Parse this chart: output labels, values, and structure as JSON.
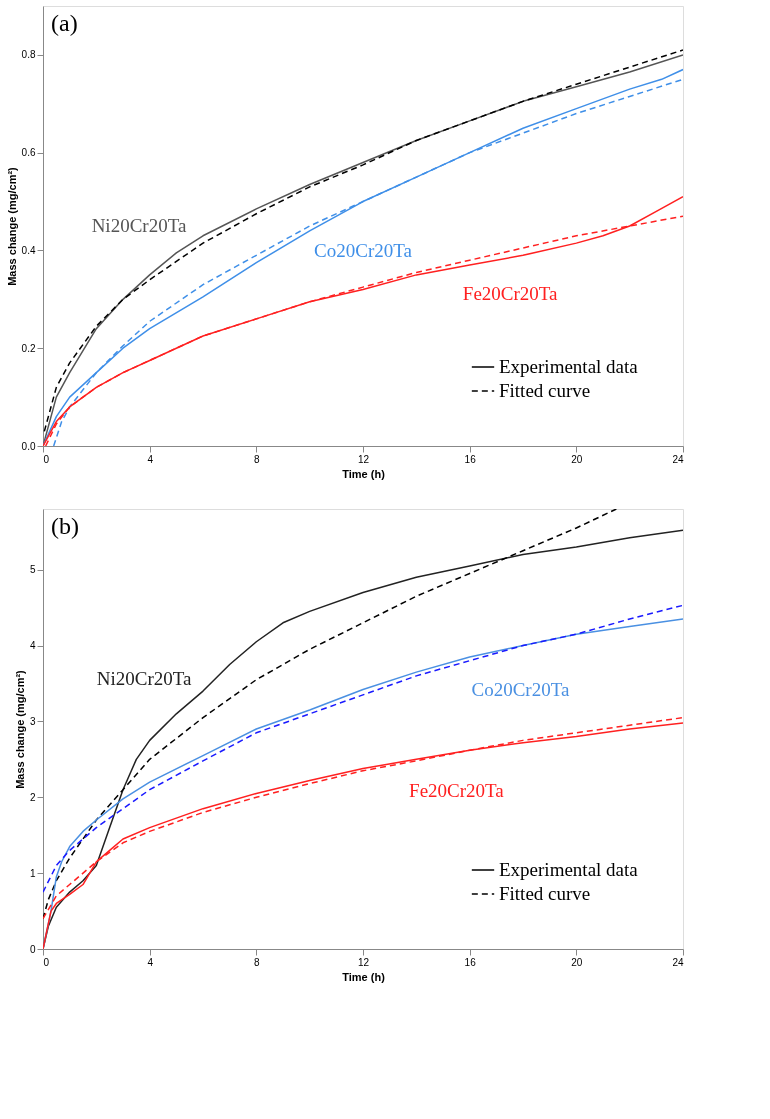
{
  "chart_data": [
    {
      "type": "line",
      "title": "(a)",
      "xlabel": "Time (h)",
      "ylabel": "Mass change (mg/cm²)",
      "xlim": [
        0,
        24
      ],
      "ylim": [
        0,
        0.9
      ],
      "xticks": [
        0,
        4,
        8,
        12,
        16,
        20,
        24
      ],
      "yticks": [
        {
          "value": 0,
          "label": "0.0"
        },
        {
          "value": 0.2,
          "label": "0.2"
        },
        {
          "value": 0.4,
          "label": "0.4"
        },
        {
          "value": 0.6,
          "label": "0.6"
        },
        {
          "value": 0.8,
          "label": "0.8"
        }
      ],
      "grid": false,
      "annotations": [
        "Ni20Cr20Ta",
        "Co20Cr20Ta",
        "Fe20Cr20Ta",
        "Experimental data",
        "Fitted curve"
      ],
      "series": [
        {
          "color": "#555555",
          "line_style": "solid",
          "x": [
            0,
            0.5,
            1,
            2,
            3,
            4,
            5,
            6,
            8,
            10,
            12,
            14,
            16,
            18,
            20,
            22,
            24
          ],
          "values": [
            0,
            0.1,
            0.15,
            0.24,
            0.3,
            0.35,
            0.395,
            0.43,
            0.485,
            0.535,
            0.58,
            0.625,
            0.665,
            0.705,
            0.735,
            0.765,
            0.8
          ]
        },
        {
          "color": "#000000",
          "line_style": "dashed",
          "x": [
            0.05,
            0.5,
            1,
            2,
            3,
            4,
            6,
            8,
            10,
            12,
            14,
            16,
            18,
            20,
            22,
            24
          ],
          "values": [
            0.03,
            0.12,
            0.17,
            0.245,
            0.3,
            0.34,
            0.415,
            0.475,
            0.53,
            0.575,
            0.625,
            0.665,
            0.705,
            0.74,
            0.775,
            0.81
          ]
        },
        {
          "color": "#3f8fe8",
          "line_style": "solid",
          "x": [
            0,
            0.5,
            1,
            2,
            3,
            4,
            6,
            8,
            10,
            12,
            14,
            16,
            18,
            20,
            22,
            23.2,
            24
          ],
          "values": [
            0,
            0.06,
            0.1,
            0.15,
            0.2,
            0.24,
            0.305,
            0.375,
            0.44,
            0.5,
            0.55,
            0.6,
            0.65,
            0.69,
            0.73,
            0.75,
            0.77
          ]
        },
        {
          "color": "#3f8fe8",
          "line_style": "dashed",
          "x": [
            0.4,
            0.7,
            1,
            2,
            3,
            4,
            6,
            8,
            10,
            12,
            14,
            16,
            18,
            20,
            22,
            24
          ],
          "values": [
            0,
            0.05,
            0.08,
            0.15,
            0.205,
            0.255,
            0.33,
            0.39,
            0.45,
            0.5,
            0.55,
            0.6,
            0.64,
            0.68,
            0.715,
            0.75
          ]
        },
        {
          "color": "#ff2020",
          "line_style": "solid",
          "x": [
            0,
            0.5,
            1,
            2,
            3,
            4,
            6,
            8,
            10,
            12,
            14,
            16,
            18,
            20,
            21,
            22,
            23,
            24
          ],
          "values": [
            0,
            0.05,
            0.08,
            0.12,
            0.15,
            0.175,
            0.225,
            0.26,
            0.295,
            0.32,
            0.35,
            0.37,
            0.39,
            0.415,
            0.43,
            0.45,
            0.48,
            0.51
          ]
        },
        {
          "color": "#ff2020",
          "line_style": "dashed",
          "x": [
            0.1,
            0.5,
            1,
            2,
            3,
            4,
            6,
            8,
            10,
            12,
            14,
            16,
            18,
            20,
            22,
            24
          ],
          "values": [
            0,
            0.045,
            0.08,
            0.12,
            0.15,
            0.175,
            0.225,
            0.26,
            0.295,
            0.325,
            0.355,
            0.38,
            0.405,
            0.43,
            0.45,
            0.47
          ]
        }
      ]
    },
    {
      "type": "line",
      "title": "(b)",
      "xlabel": "Time (h)",
      "ylabel": "Mass change (mg/cm²)",
      "xlim": [
        0,
        24
      ],
      "ylim": [
        0,
        5.8
      ],
      "xticks": [
        0,
        4,
        8,
        12,
        16,
        20,
        24
      ],
      "yticks": [
        0,
        1,
        2,
        3,
        4,
        5
      ],
      "grid": false,
      "annotations": [
        "Ni20Cr20Ta",
        "Co20Cr20Ta",
        "Fe20Cr20Ta",
        "Experimental data",
        "Fitted curve"
      ],
      "series": [
        {
          "color": "#222222",
          "line_style": "solid",
          "x": [
            0,
            0.2,
            0.5,
            1,
            1.5,
            2,
            2.5,
            3,
            3.5,
            4,
            5,
            6,
            7,
            8,
            9,
            10,
            12,
            14,
            16,
            18,
            20,
            22,
            24
          ],
          "values": [
            0,
            0.3,
            0.55,
            0.75,
            0.9,
            1.1,
            1.6,
            2.1,
            2.5,
            2.75,
            3.1,
            3.4,
            3.75,
            4.05,
            4.3,
            4.45,
            4.7,
            4.9,
            5.05,
            5.2,
            5.3,
            5.42,
            5.52
          ]
        },
        {
          "color": "#000000",
          "line_style": "dashed",
          "x": [
            0,
            0.2,
            0.5,
            1,
            2,
            3,
            4,
            6,
            8,
            10,
            12,
            14,
            16,
            18,
            20,
            21.5
          ],
          "values": [
            0.4,
            0.65,
            0.9,
            1.2,
            1.7,
            2.1,
            2.5,
            3.05,
            3.55,
            3.95,
            4.3,
            4.65,
            4.95,
            5.25,
            5.55,
            5.8
          ]
        },
        {
          "color": "#4a90e2",
          "line_style": "solid",
          "x": [
            0,
            0.3,
            0.5,
            0.7,
            1,
            1.5,
            2,
            3,
            4,
            6,
            8,
            10,
            12,
            14,
            16,
            18,
            20,
            22,
            24
          ],
          "values": [
            0,
            0.5,
            0.95,
            1.15,
            1.35,
            1.55,
            1.7,
            1.98,
            2.2,
            2.55,
            2.9,
            3.15,
            3.42,
            3.65,
            3.85,
            4.0,
            4.15,
            4.25,
            4.35
          ]
        },
        {
          "color": "#1a1aff",
          "line_style": "dashed",
          "x": [
            0,
            0.5,
            1,
            2,
            3,
            4,
            6,
            8,
            10,
            12,
            14,
            16,
            18,
            20,
            22,
            24
          ],
          "values": [
            0.75,
            1.1,
            1.3,
            1.6,
            1.85,
            2.1,
            2.48,
            2.85,
            3.1,
            3.35,
            3.6,
            3.8,
            4.0,
            4.15,
            4.35,
            4.53
          ]
        },
        {
          "color": "#ff2020",
          "line_style": "solid",
          "x": [
            0,
            0.3,
            0.5,
            1,
            1.5,
            2,
            2.5,
            3,
            4,
            6,
            8,
            10,
            12,
            14,
            16,
            18,
            20,
            22,
            24
          ],
          "values": [
            0,
            0.5,
            0.6,
            0.72,
            0.85,
            1.15,
            1.3,
            1.45,
            1.6,
            1.85,
            2.05,
            2.22,
            2.38,
            2.5,
            2.62,
            2.72,
            2.8,
            2.9,
            2.98
          ]
        },
        {
          "color": "#ff2020",
          "line_style": "dashed",
          "x": [
            0,
            0.5,
            1,
            2,
            3,
            4,
            6,
            8,
            10,
            12,
            14,
            16,
            18,
            20,
            22,
            24
          ],
          "values": [
            0.4,
            0.7,
            0.85,
            1.15,
            1.4,
            1.55,
            1.8,
            2.0,
            2.18,
            2.35,
            2.48,
            2.62,
            2.75,
            2.85,
            2.95,
            3.05
          ]
        }
      ]
    }
  ]
}
